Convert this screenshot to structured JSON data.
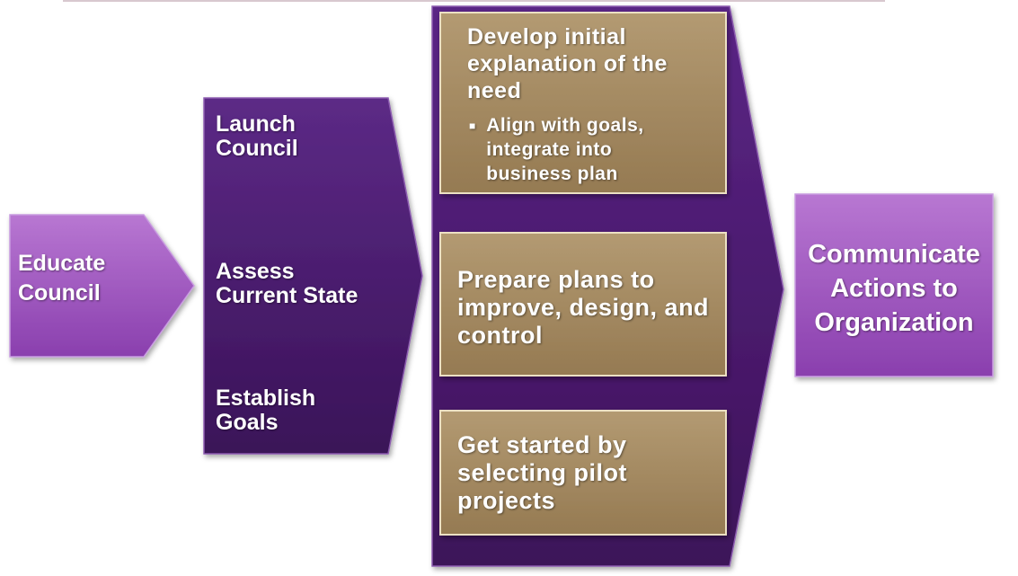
{
  "colors": {
    "purple_dark": "#3f1560",
    "purple_mid": "#5a2585",
    "purple_light": "#a65cc4",
    "tan": "#a78b63",
    "tan_border": "#e8dcc0",
    "text": "#ffffff"
  },
  "educate": {
    "label": "Educate\nCouncil"
  },
  "phase2": {
    "items": [
      {
        "label": "Launch\nCouncil"
      },
      {
        "label": "Assess\nCurrent State"
      },
      {
        "label": "Establish\nGoals"
      }
    ]
  },
  "phase3": {
    "box1": {
      "title": "Develop initial\nexplanation of the\nneed",
      "bullet": "Align with goals,\nintegrate into\nbusiness plan"
    },
    "box2": {
      "title": "Prepare plans to\nimprove, design, and\ncontrol"
    },
    "box3": {
      "title": "Get started by\nselecting pilot\nprojects"
    }
  },
  "communicate": {
    "label": "Communicate\nActions to\nOrganization"
  }
}
